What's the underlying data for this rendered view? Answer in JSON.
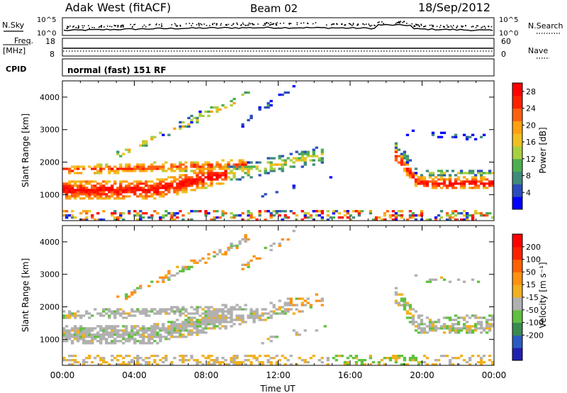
{
  "header": {
    "station": "Adak West (fitACF)",
    "beam": "Beam 02",
    "date": "18/Sep/2012"
  },
  "nsky_panel": {
    "left_label": "N.Sky",
    "y_top_label": "10^5",
    "y_bottom_label": "10^0",
    "right_label": "N.Search"
  },
  "freq_panel": {
    "label_line1": "Freq.",
    "label_line2": "[MHz]",
    "y_top": "18",
    "y_bottom": "8",
    "right_top": "60",
    "right_bottom": "0",
    "right_label": "Nave"
  },
  "cpid_panel": {
    "label": "CPID",
    "program": "normal (fast) 151 RF"
  },
  "colors": {
    "power_scale": [
      "#0000ff",
      "#2a4dbd",
      "#3f8a78",
      "#4caf50",
      "#a8d040",
      "#f0c020",
      "#ffa010",
      "#ff6010",
      "#ff2000",
      "#ff0000"
    ],
    "velocity_scale": [
      "#2020b0",
      "#2a5cbf",
      "#3a8a50",
      "#60c040",
      "#b0b0b0",
      "#f0b020",
      "#ff9010",
      "#ff6000",
      "#ff2000",
      "#ff0000"
    ]
  },
  "chart_data": [
    {
      "type": "heatmap",
      "name": "power",
      "ylabel": "Slant Range [km]",
      "yticks": [
        "1000",
        "2000",
        "3000",
        "4000"
      ],
      "ylim": [
        200,
        4500
      ],
      "xticks": [
        "00:00",
        "04:00",
        "08:00",
        "12:00",
        "16:00",
        "20:00",
        "00:00"
      ],
      "xlabel": "",
      "colorbar": {
        "label": "Power [dB]",
        "ticks": [
          "4",
          "8",
          "12",
          "16",
          "20",
          "24",
          "28"
        ],
        "range": [
          0,
          30
        ]
      }
    },
    {
      "type": "heatmap",
      "name": "velocity",
      "ylabel": "Slant Range [km]",
      "yticks": [
        "1000",
        "2000",
        "3000",
        "4000"
      ],
      "ylim": [
        200,
        4500
      ],
      "xticks": [
        "00:00",
        "04:00",
        "08:00",
        "12:00",
        "16:00",
        "20:00",
        "00:00"
      ],
      "xlabel": "Time UT",
      "colorbar": {
        "label": "Velocity [m s⁻¹]",
        "ticks": [
          "200",
          "100",
          "50",
          "15",
          "-15",
          "-50",
          "-100",
          "-200"
        ],
        "range": [
          -250,
          250
        ]
      }
    }
  ]
}
